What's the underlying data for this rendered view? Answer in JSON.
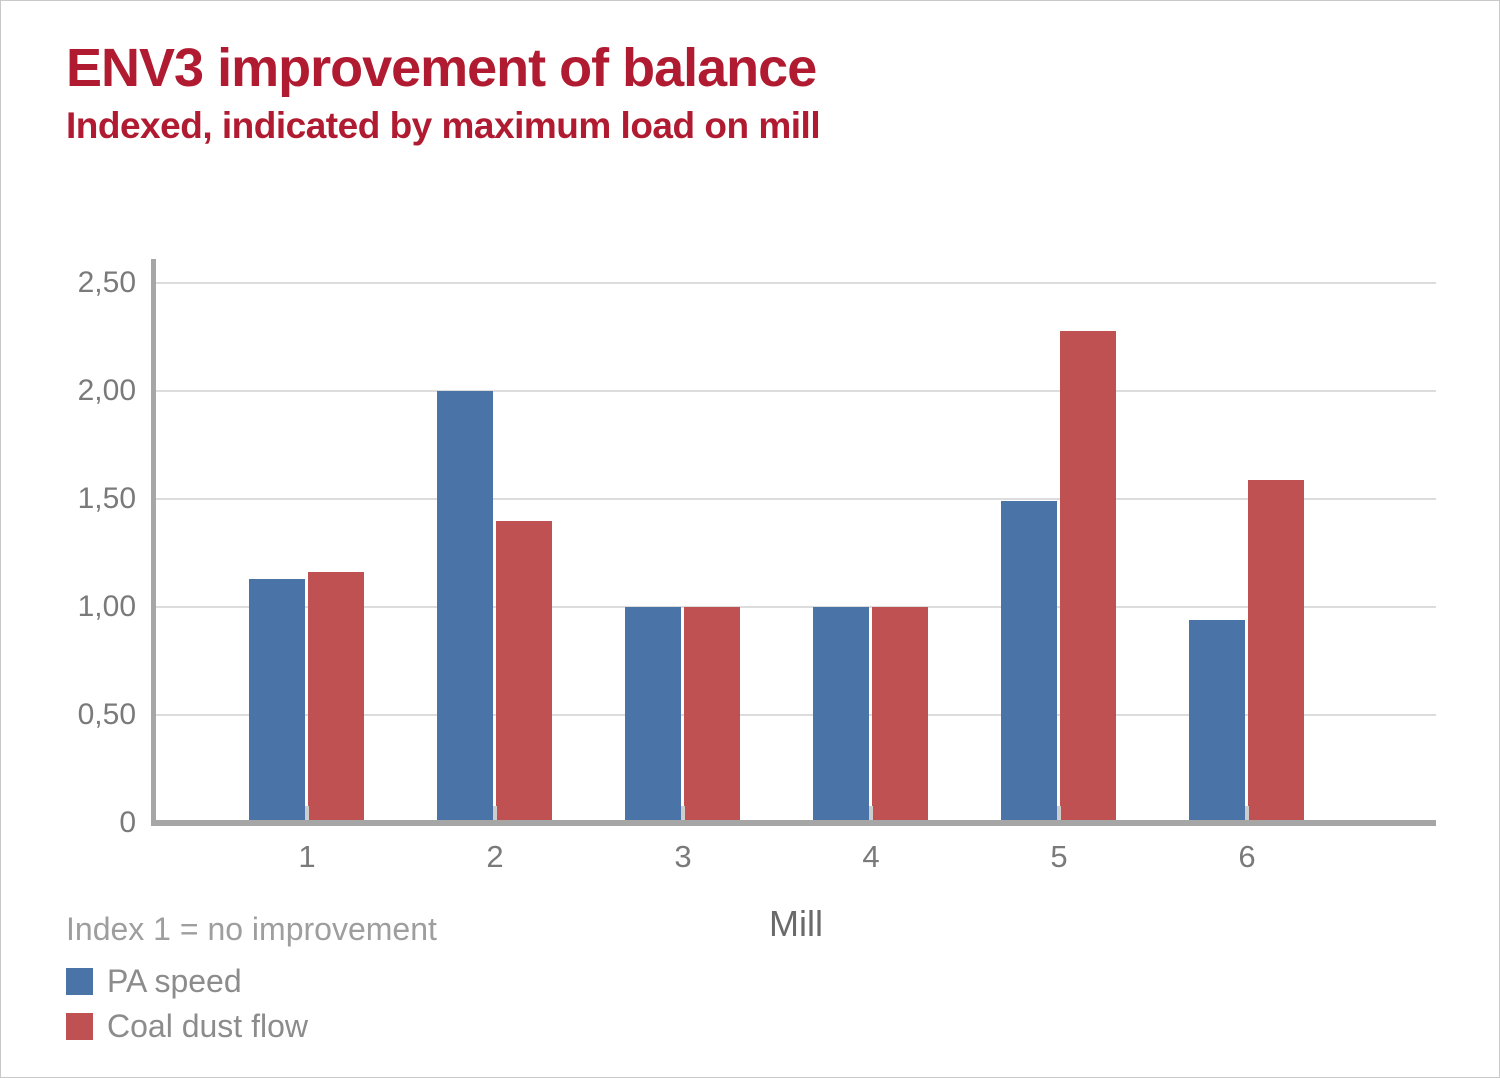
{
  "page": {
    "title": "ENV3 improvement of balance",
    "subtitle": "Indexed, indicated by maximum load on mill",
    "footnote": "Index 1 = no improvement"
  },
  "colors": {
    "title_text": "#b01b31",
    "pa_speed": "#4a73a8",
    "coal_dust_flow": "#c05152",
    "axis_line": "#a6a6a6",
    "gridline": "#dcdcdc",
    "category_tick": "#cdcdcd",
    "tick_label_text": "#7a7a7a",
    "axis_title_text": "#6a6a6a",
    "footnote_text": "#9e9e9e",
    "legend_text": "#8c8c8c"
  },
  "chart_data": {
    "type": "bar",
    "title": "ENV3 improvement of balance",
    "subtitle": "Indexed, indicated by maximum load on mill",
    "categories": [
      "1",
      "2",
      "3",
      "4",
      "5",
      "6"
    ],
    "series": [
      {
        "name": "PA speed",
        "color": "#4a73a8",
        "values": [
          1.13,
          2.0,
          1.0,
          1.0,
          1.49,
          0.94
        ]
      },
      {
        "name": "Coal dust flow",
        "color": "#c05152",
        "values": [
          1.16,
          1.4,
          1.0,
          1.0,
          2.28,
          1.59
        ]
      }
    ],
    "xlabel": "Mill",
    "ylabel": "",
    "ylim": [
      0,
      2.5
    ],
    "y_ticks": [
      {
        "value": 0,
        "label": "0"
      },
      {
        "value": 0.5,
        "label": "0,50"
      },
      {
        "value": 1,
        "label": "1,00"
      },
      {
        "value": 1.5,
        "label": "1,50"
      },
      {
        "value": 2,
        "label": "2,00"
      },
      {
        "value": 2.5,
        "label": "2,50"
      }
    ],
    "grid": "horizontal-on",
    "legend_position": "bottom-left",
    "footnote": "Index 1 = no improvement"
  },
  "legend": {
    "items": [
      {
        "label": "PA speed",
        "color": "#4a73a8"
      },
      {
        "label": "Coal dust flow",
        "color": "#c05152"
      }
    ]
  }
}
